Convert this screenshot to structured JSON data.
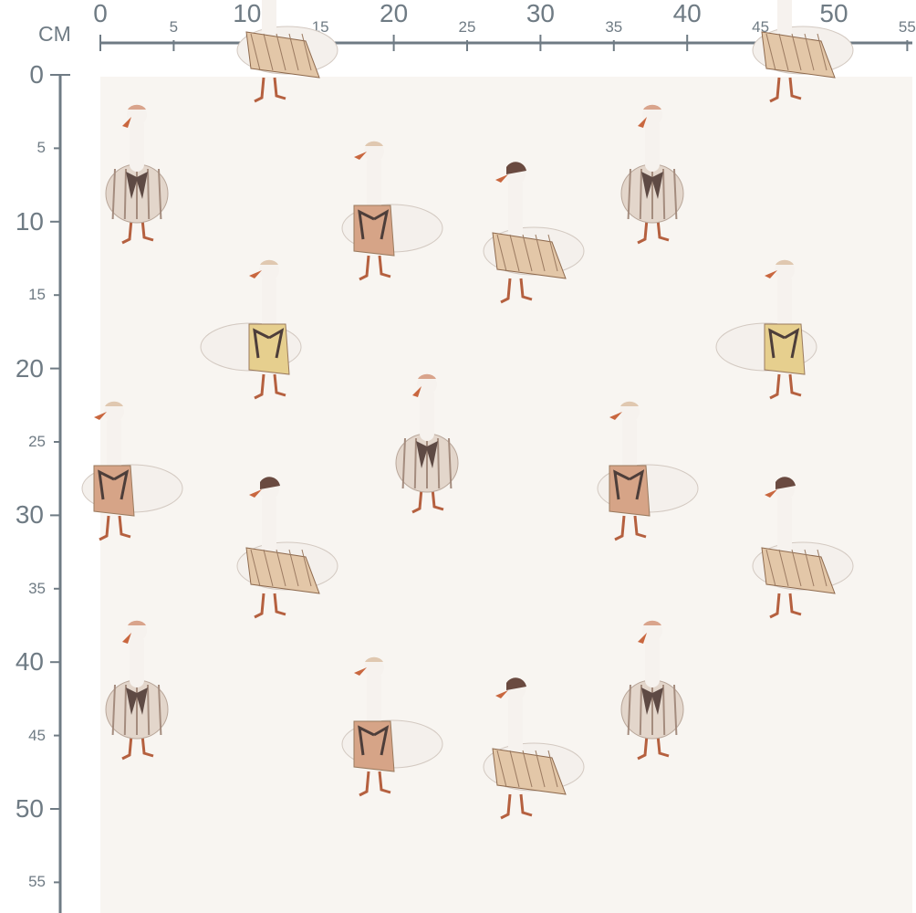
{
  "ruler": {
    "unit": "CM",
    "horizontal_labels": [
      0,
      5,
      10,
      15,
      20,
      25,
      30,
      35,
      40,
      45,
      50,
      55
    ],
    "vertical_labels": [
      0,
      5,
      10,
      15,
      20,
      25,
      30,
      35,
      40,
      45,
      50,
      55
    ],
    "color": "#6f7b84"
  },
  "fabric": {
    "background": "#f8f5f1",
    "pattern": "geese in bonnets and vests",
    "repeat_cm": 35
  }
}
